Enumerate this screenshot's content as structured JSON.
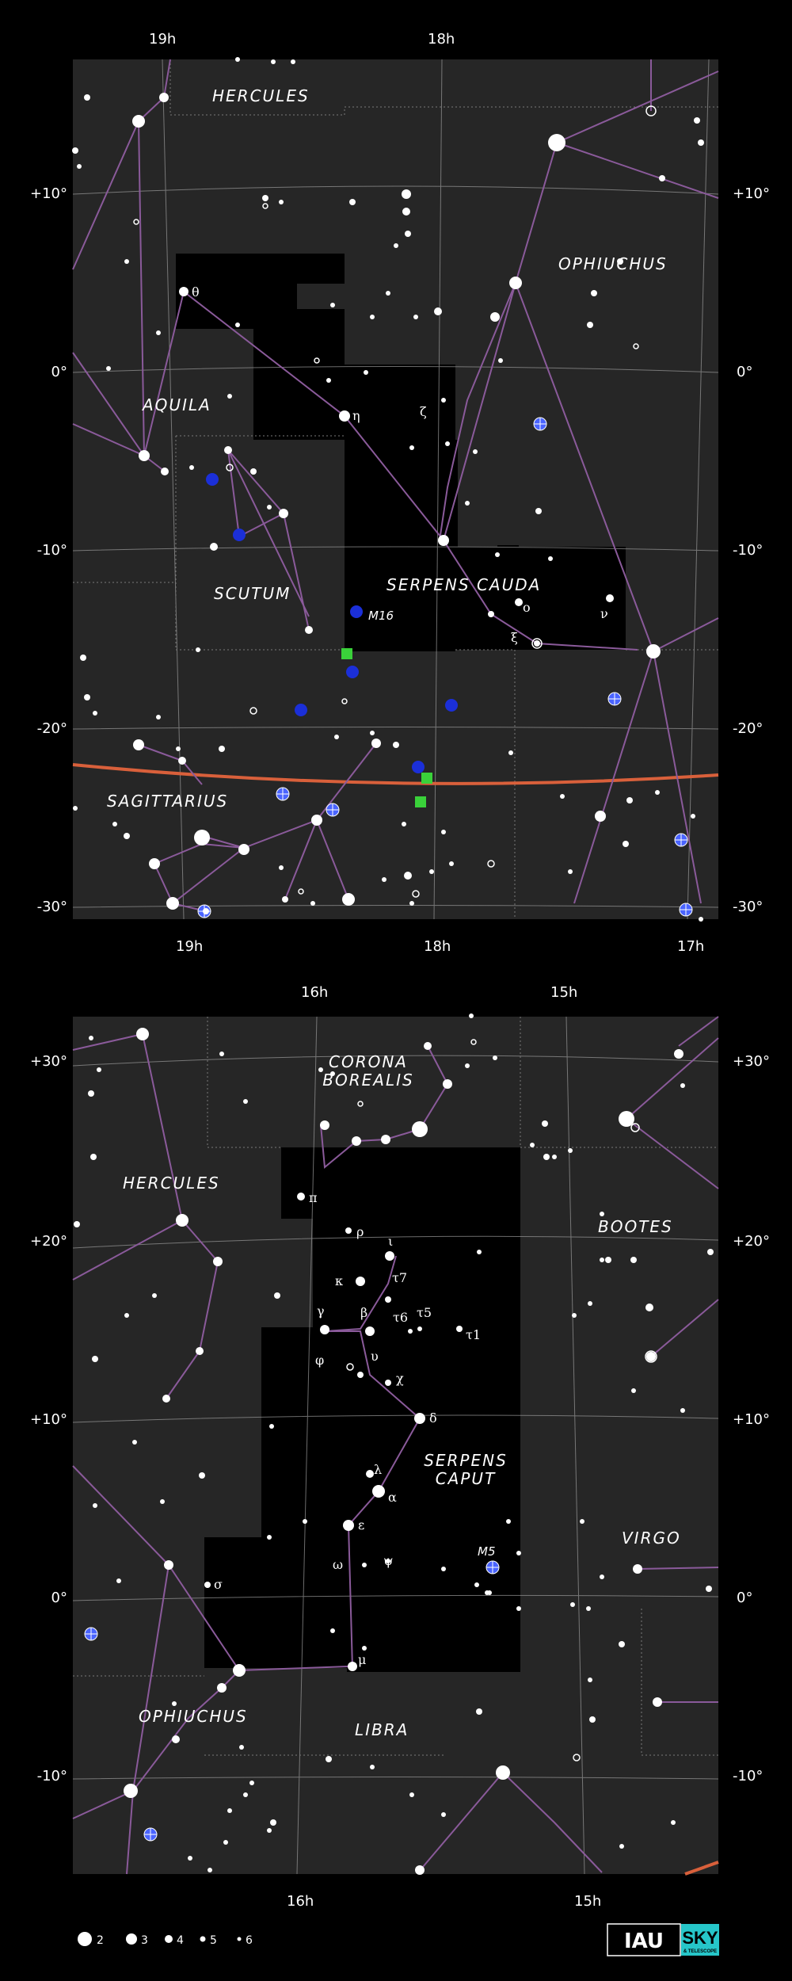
{
  "upper_chart": {
    "ra_top": [
      "19h",
      "18h"
    ],
    "ra_bottom": [
      "19h",
      "18h",
      "17h"
    ],
    "dec_left": [
      "+10°",
      "0°",
      "-10°",
      "-20°",
      "-30°"
    ],
    "dec_right": [
      "+10°",
      "0°",
      "-10°",
      "-20°",
      "-30°"
    ],
    "constellations": [
      "HERCULES",
      "OPHIUCHUS",
      "AQUILA",
      "SCUTUM",
      "SERPENS CAUDA",
      "SAGITTARIUS"
    ],
    "star_labels": [
      "θ",
      "η",
      "ζ",
      "ο",
      "ν",
      "ξ"
    ],
    "object_labels": [
      "M16"
    ]
  },
  "lower_chart": {
    "ra_top": [
      "16h",
      "15h"
    ],
    "ra_bottom": [
      "16h",
      "15h"
    ],
    "dec_left": [
      "+30°",
      "+20°",
      "+10°",
      "0°",
      "-10°"
    ],
    "dec_right": [
      "+30°",
      "+20°",
      "+10°",
      "0°",
      "-10°"
    ],
    "constellations": [
      "CORONA BOREALIS",
      "HERCULES",
      "BOOTES",
      "SERPENS CAPUT",
      "VIRGO",
      "OPHIUCHUS",
      "LIBRA"
    ],
    "corona_line1": "CORONA",
    "corona_line2": "BOREALIS",
    "serpens_line1": "SERPENS",
    "serpens_line2": "CAPUT",
    "star_labels": [
      "π",
      "ρ",
      "ι",
      "κ",
      "τ7",
      "γ",
      "β",
      "τ6",
      "τ5",
      "τ1",
      "φ",
      "υ",
      "χ",
      "δ",
      "λ",
      "α",
      "ε",
      "ω",
      "ψ",
      "σ",
      "μ"
    ],
    "object_labels": [
      "M5"
    ]
  },
  "legend": {
    "magnitudes": [
      "2",
      "3",
      "4",
      "5",
      "6"
    ]
  },
  "logos": {
    "iau": "IAU",
    "sky": "SKY",
    "sky_sub": "& TELESCOPE"
  },
  "colors": {
    "chart_bg": "#262626",
    "constellation_region": "#000000",
    "stick_lines": "#8a5a9a",
    "ecliptic": "#d9603b",
    "deep_sky": "#1b2fd8",
    "nebula": "#3ad13a",
    "sky_logo": "#26c6c9"
  }
}
